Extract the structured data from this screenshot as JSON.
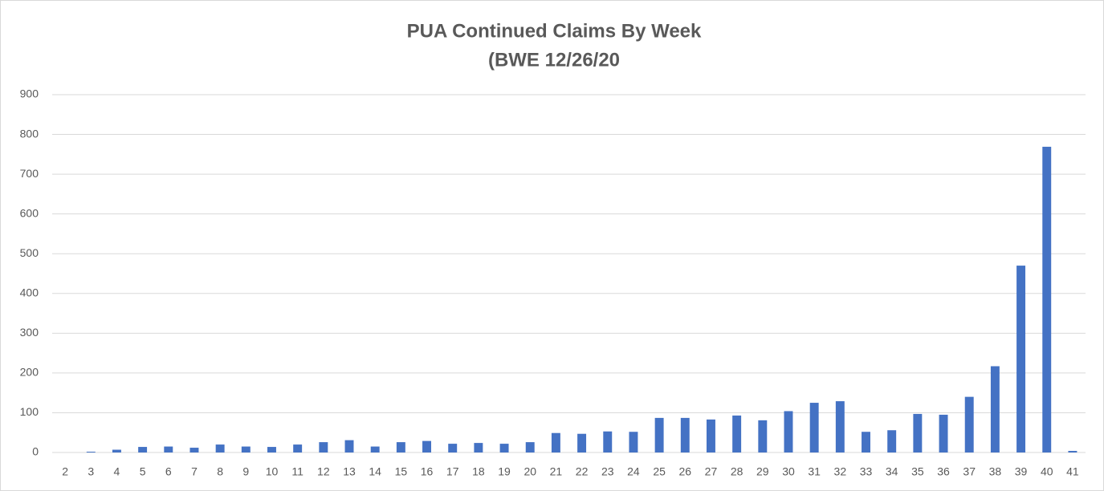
{
  "chart_data": {
    "type": "bar",
    "title": "PUA Continued Claims By Week",
    "subtitle": "(BWE 12/26/20",
    "categories": [
      "2",
      "3",
      "4",
      "5",
      "6",
      "7",
      "8",
      "9",
      "10",
      "11",
      "12",
      "13",
      "14",
      "15",
      "16",
      "17",
      "18",
      "19",
      "20",
      "21",
      "22",
      "23",
      "24",
      "25",
      "26",
      "27",
      "28",
      "29",
      "30",
      "31",
      "32",
      "33",
      "34",
      "35",
      "36",
      "37",
      "38",
      "39",
      "40",
      "41"
    ],
    "values": [
      0,
      2,
      7,
      14,
      15,
      12,
      20,
      15,
      14,
      20,
      26,
      31,
      15,
      26,
      29,
      22,
      24,
      22,
      26,
      49,
      47,
      53,
      52,
      87,
      87,
      83,
      93,
      81,
      104,
      125,
      129,
      52,
      56,
      97,
      95,
      140,
      217,
      470,
      769,
      4
    ],
    "color": "#4472c4",
    "ylim": [
      0,
      900
    ],
    "yticks": [
      0,
      100,
      200,
      300,
      400,
      500,
      600,
      700,
      800,
      900
    ],
    "grid": true
  }
}
